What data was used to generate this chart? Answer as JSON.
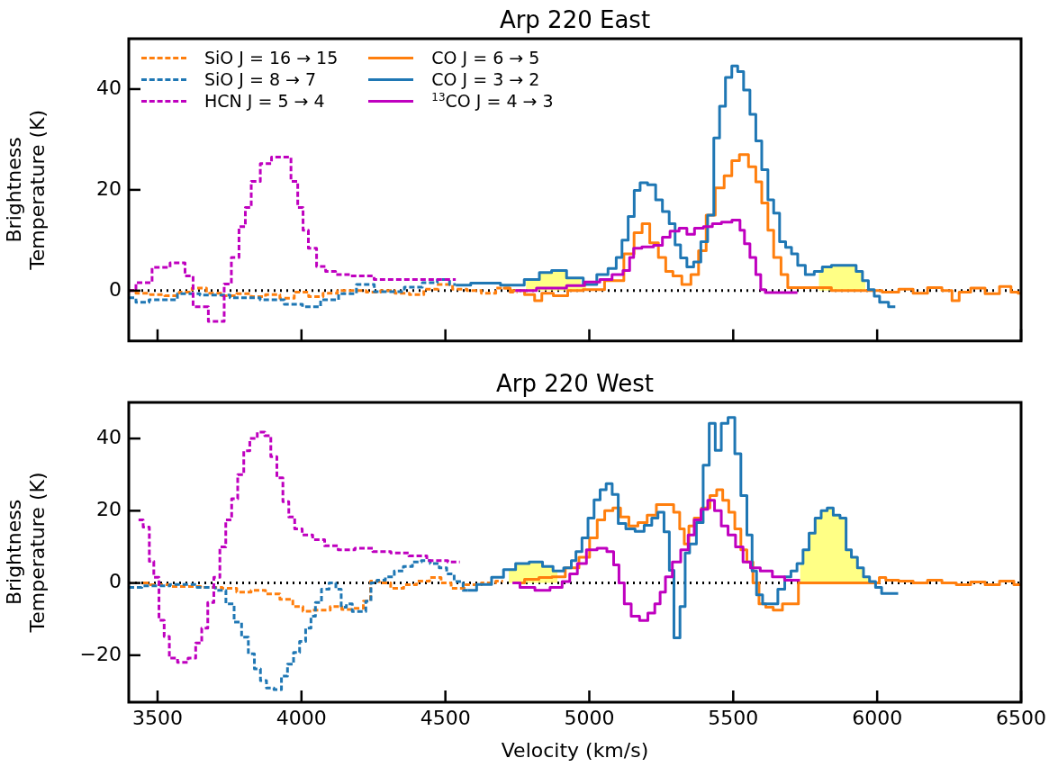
{
  "chart_data": [
    {
      "type": "step",
      "title": "Arp 220 East",
      "ylabel": "Brightness Temperature (K)",
      "xlim": [
        3400,
        6500
      ],
      "xticks": [
        3500,
        4000,
        4500,
        5000,
        5500,
        6000,
        6500
      ],
      "ylim": [
        -10,
        50
      ],
      "yticks": [
        0,
        20,
        40
      ],
      "tick_labels": "y",
      "grid": false,
      "legend": "top left",
      "ref_lines": [
        {
          "axis": "y",
          "value": 0,
          "line_style": "dotted",
          "color": "#000000"
        }
      ],
      "series": [
        {
          "type": "area",
          "color": "#ffff66",
          "x": [
            4780,
            4805,
            4848,
            4890,
            4952,
            4990
          ],
          "values": [
            2.0,
            2.2,
            3.6,
            4.0,
            2.5,
            1.2
          ]
        },
        {
          "type": "area",
          "color": "#ffff66",
          "x": [
            5797,
            5822,
            5860,
            5916,
            5938,
            5960
          ],
          "values": [
            3.8,
            4.7,
            5.0,
            5.0,
            3.8,
            2.0
          ]
        },
        {
          "name": "SiO J = 16 → 15",
          "line_style": "dashed",
          "color": "#ff7f0e",
          "x": [
            3400,
            3450,
            3500,
            3550,
            3600,
            3640,
            3700,
            3750,
            3800,
            3850,
            3900,
            3950,
            4000,
            4050,
            4100,
            4150,
            4200,
            4250,
            4300,
            4350,
            4400,
            4450,
            4500,
            4550,
            4600,
            4650,
            4700,
            4750
          ],
          "values": [
            0,
            -0.5,
            -0.8,
            -1,
            -0.3,
            0.5,
            -0.5,
            -1,
            -0.6,
            -1.2,
            -0.8,
            -1.5,
            -0.3,
            -1.2,
            -0.5,
            0,
            0,
            -0.3,
            0,
            -0.5,
            -0.8,
            0.3,
            1.2,
            0.3,
            0,
            -0.5,
            0.5,
            -0.3
          ]
        },
        {
          "name": "SiO J = 8 → 7",
          "line_style": "dashed",
          "color": "#1f77b4",
          "x": [
            3400,
            3450,
            3491,
            3543,
            3595,
            3700,
            3804,
            3909,
            3972,
            4035,
            4098,
            4160,
            4222,
            4284,
            4326,
            4389,
            4451,
            4493,
            4536
          ],
          "values": [
            -1.4,
            -2.3,
            -1.8,
            -1.8,
            -0.6,
            -0.9,
            -1.4,
            -1.8,
            -2.7,
            -3.2,
            -1.8,
            -0.6,
            1.2,
            -0.2,
            -0.2,
            0.7,
            1.6,
            2.2,
            1.2
          ]
        },
        {
          "name": "HCN J = 5 → 4",
          "line_style": "dashed",
          "color": "#bf00bf",
          "x": [
            3400,
            3450,
            3512,
            3575,
            3616,
            3631,
            3722,
            3741,
            3772,
            3794,
            3816,
            3835,
            3879,
            3913,
            3951,
            3976,
            3998,
            4013,
            4035,
            4070,
            4098,
            4139,
            4201,
            4304,
            4430,
            4536
          ],
          "values": [
            0,
            1.6,
            4.6,
            5.5,
            2.9,
            -3.2,
            -6.1,
            1.3,
            6.6,
            12.7,
            16.5,
            21.7,
            25.2,
            26.5,
            26.5,
            21.7,
            16.5,
            12.0,
            8.4,
            4.8,
            3.8,
            3.2,
            2.9,
            2.2,
            2.2,
            2.2
          ]
        },
        {
          "name": "CO J = 6 → 5",
          "color": "#ff7f0e",
          "x": [
            4700,
            4750,
            4800,
            4820,
            4850,
            4900,
            4950,
            5006,
            5100,
            5140,
            5171,
            5196,
            5224,
            5256,
            5275,
            5306,
            5337,
            5369,
            5390,
            5422,
            5453,
            5484,
            5506,
            5537,
            5569,
            5588,
            5610,
            5631,
            5650,
            5682,
            5697,
            5985,
            6050,
            6100,
            6150,
            6200,
            6250,
            6270,
            6300,
            6350,
            6400,
            6450,
            6480,
            6500
          ],
          "values": [
            0.5,
            0,
            -0.8,
            -2,
            -0.5,
            -1,
            0,
            0.2,
            2,
            7.3,
            11.5,
            13.3,
            9.5,
            6.6,
            3.8,
            2.9,
            1.2,
            3.2,
            7.9,
            15,
            20.4,
            22.8,
            25.8,
            27,
            24.6,
            21.6,
            17.4,
            12,
            6.6,
            3.2,
            0.6,
            0,
            -0.3,
            0.3,
            -0.5,
            0.6,
            0,
            -2,
            -0.3,
            0.5,
            -0.6,
            0.8,
            -0.3,
            -0.5
          ]
        },
        {
          "name": "CO J = 3 → 2",
          "color": "#1f77b4",
          "x": [
            4536,
            4640,
            4743,
            4805,
            4848,
            4890,
            4952,
            5006,
            5046,
            5084,
            5103,
            5124,
            5146,
            5166,
            5187,
            5218,
            5243,
            5265,
            5290,
            5306,
            5328,
            5350,
            5375,
            5400,
            5422,
            5443,
            5462,
            5484,
            5506,
            5525,
            5547,
            5569,
            5588,
            5610,
            5631,
            5650,
            5672,
            5692,
            5713,
            5735,
            5766,
            5797,
            5822,
            5860,
            5916,
            5938,
            5960,
            5979,
            6001,
            6016,
            6063
          ],
          "values": [
            1.1,
            1.5,
            1.1,
            2.2,
            3.6,
            4.0,
            2.5,
            1.2,
            3.2,
            4.4,
            6.6,
            10,
            14.7,
            19.9,
            21.4,
            21,
            18,
            15.7,
            13.3,
            9.1,
            6.5,
            4.7,
            5.7,
            9.7,
            15,
            30.3,
            36.6,
            42.3,
            44.6,
            43.5,
            39.8,
            35,
            29.7,
            24,
            18,
            15.4,
            9.7,
            8.6,
            7.3,
            5,
            3.2,
            3.8,
            4.7,
            5,
            5,
            3.8,
            2,
            0.2,
            -1.1,
            -2.3,
            -3.2
          ]
        },
        {
          "name": "$^{13}$CO J = 4 → 3",
          "color": "#bf00bf",
          "x": [
            4743,
            4890,
            4952,
            5015,
            5058,
            5100,
            5134,
            5146,
            5162,
            5203,
            5243,
            5265,
            5296,
            5328,
            5350,
            5381,
            5412,
            5443,
            5475,
            5516,
            5531,
            5547,
            5569,
            5588,
            5603,
            5620,
            5682,
            5723
          ],
          "values": [
            0,
            0.5,
            1.0,
            1.7,
            2.2,
            3.2,
            4,
            6.6,
            8.4,
            8.7,
            9,
            10.6,
            11.8,
            12.4,
            11.2,
            12.4,
            12.7,
            13.3,
            13.6,
            14,
            12,
            9.3,
            6.6,
            3.2,
            0.2,
            -0.4,
            -0.4,
            -0.4
          ]
        }
      ]
    },
    {
      "type": "step",
      "title": "Arp 220 West",
      "xlabel": "Velocity (km/s)",
      "ylabel": "Brightness Temperature (K)",
      "xlim": [
        3400,
        6500
      ],
      "xticks": [
        3500,
        4000,
        4500,
        5000,
        5500,
        6000,
        6500
      ],
      "ylim": [
        -33,
        50
      ],
      "yticks": [
        -20,
        0,
        20,
        40
      ],
      "grid": false,
      "ref_lines": [
        {
          "axis": "y",
          "value": 0,
          "line_style": "dotted",
          "color": "#000000"
        }
      ],
      "series": [
        {
          "type": "area",
          "color": "#ffff66",
          "x": [
            4720,
            4765,
            4817,
            4858,
            4890
          ],
          "values": [
            3.7,
            5.4,
            5.8,
            4.6,
            3.3
          ]
        },
        {
          "type": "area",
          "color": "#ffff66",
          "x": [
            5732,
            5753,
            5774,
            5795,
            5816,
            5837,
            5858,
            5884,
            5900,
            5921,
            5942,
            5963,
            5984
          ],
          "values": [
            5.4,
            9.2,
            13.8,
            18,
            20,
            20.8,
            18.8,
            18,
            9.2,
            7.1,
            4.2,
            1.7,
            0.4
          ]
        },
        {
          "line_style": "dashed",
          "color": "#ff7f0e",
          "x": [
            3450,
            3500,
            3600,
            3700,
            3750,
            3800,
            3850,
            3900,
            3950,
            3990,
            4020,
            4050,
            4080,
            4120,
            4160,
            4200,
            4230,
            4250,
            4290,
            4330,
            4380,
            4420,
            4470,
            4500,
            4540,
            4600,
            4650,
            4700
          ],
          "values": [
            0,
            -0.5,
            -1,
            -1.2,
            -1.5,
            -2.5,
            -2,
            -3,
            -4.5,
            -6.5,
            -7.8,
            -7.5,
            -7.5,
            -6.5,
            -7.3,
            -7,
            -5,
            0.5,
            0,
            -1.5,
            -0.5,
            0.5,
            1.5,
            0,
            -1.5,
            -0.5,
            0,
            0.5
          ]
        },
        {
          "line_style": "dashed",
          "color": "#1f77b4",
          "x": [
            3400,
            3491,
            3595,
            3680,
            3722,
            3753,
            3779,
            3805,
            3826,
            3847,
            3868,
            3889,
            3920,
            3941,
            3962,
            3983,
            4004,
            4025,
            4041,
            4056,
            4083,
            4109,
            4130,
            4146,
            4166,
            4187,
            4213,
            4234,
            4249,
            4276,
            4307,
            4338,
            4370,
            4401,
            4432,
            4463,
            4494,
            4515,
            4546,
            4577
          ],
          "values": [
            -1.2,
            -0.8,
            -0.4,
            -1.2,
            -2,
            -5.8,
            -10.8,
            -15,
            -19.6,
            -23.8,
            -27,
            -29.1,
            -29.5,
            -25.8,
            -22.5,
            -19.2,
            -16.2,
            -12.5,
            -9.2,
            -5.4,
            -1.7,
            0,
            -1.7,
            -6.7,
            -5.8,
            -7.9,
            -7.9,
            -5,
            0,
            0.8,
            1.7,
            3.3,
            4.6,
            5.8,
            6.2,
            5.4,
            4.2,
            2.5,
            0.4,
            -2
          ]
        },
        {
          "line_style": "dashed",
          "color": "#bf00bf",
          "x": [
            3434,
            3466,
            3477,
            3497,
            3513,
            3533,
            3549,
            3590,
            3622,
            3643,
            3664,
            3685,
            3706,
            3727,
            3747,
            3768,
            3789,
            3810,
            3831,
            3862,
            3883,
            3904,
            3925,
            3946,
            3966,
            3987,
            4018,
            4060,
            4101,
            4154,
            4217,
            4279,
            4342,
            4404,
            4467,
            4550
          ],
          "values": [
            17.5,
            15.5,
            6,
            1.6,
            -10.3,
            -14.8,
            -20.8,
            -22,
            -20.8,
            -16.6,
            -12.5,
            -5.4,
            1.6,
            10,
            17.5,
            23.3,
            30,
            36.6,
            40,
            41.8,
            40.8,
            35,
            29.1,
            22.5,
            18.3,
            15,
            13.3,
            12,
            10.3,
            9.2,
            9.6,
            8.7,
            8.3,
            7.5,
            6.2,
            5.8
          ]
        },
        {
          "color": "#ff7f0e",
          "x": [
            4750,
            4800,
            4850,
            4890,
            4943,
            4985,
            5017,
            5038,
            5069,
            5095,
            5122,
            5153,
            5185,
            5217,
            5249,
            5280,
            5306,
            5322,
            5338,
            5354,
            5375,
            5406,
            5432,
            5453,
            5474,
            5495,
            5516,
            5537,
            5558,
            5579,
            5600,
            5626,
            5652,
            5690,
            5721,
            5732,
            6005,
            6010,
            6050,
            6100,
            6150,
            6200,
            6250,
            6300,
            6350,
            6400,
            6450,
            6500
          ],
          "values": [
            0,
            1,
            1.5,
            1.7,
            4.2,
            7.1,
            12.5,
            17.5,
            20,
            20.8,
            18.3,
            15.8,
            16.7,
            18.8,
            21.7,
            21.7,
            19.6,
            15,
            10.8,
            15.8,
            18,
            20.8,
            24.2,
            25.8,
            22.9,
            19.6,
            15,
            9.2,
            5.8,
            0,
            -5.8,
            -6.7,
            -7.5,
            -5.8,
            -5.8,
            0,
            0,
            1.5,
            0.8,
            0.5,
            0,
            0.8,
            0,
            -0.5,
            0.3,
            -0.5,
            0.5,
            -0.5
          ]
        },
        {
          "color": "#1f77b4",
          "x": [
            4577,
            4640,
            4681,
            4723,
            4765,
            4817,
            4858,
            4890,
            4932,
            4943,
            4964,
            4985,
            5006,
            5027,
            5048,
            5069,
            5090,
            5111,
            5143,
            5175,
            5206,
            5228,
            5249,
            5270,
            5286,
            5302,
            5328,
            5338,
            5359,
            5385,
            5406,
            5427,
            5448,
            5469,
            5495,
            5516,
            5537,
            5558,
            5573,
            5589,
            5615,
            5642,
            5668,
            5690,
            5711,
            5732,
            5753,
            5774,
            5795,
            5816,
            5837,
            5858,
            5884,
            5900,
            5921,
            5942,
            5963,
            5984,
            6005,
            6026,
            6073
          ],
          "values": [
            -2,
            -0.4,
            1.6,
            3.7,
            5.4,
            5.8,
            4.6,
            3.3,
            4.2,
            6.2,
            8.7,
            12.5,
            18,
            23,
            25.8,
            27.5,
            24.5,
            16.5,
            15,
            14.3,
            16,
            18,
            19.6,
            14.2,
            3.5,
            -15.2,
            -6.5,
            8.3,
            10.8,
            16.7,
            32.6,
            44.2,
            36.7,
            44.2,
            45.8,
            35.8,
            24.2,
            13.3,
            3.3,
            -3.3,
            -5.8,
            -5.8,
            -1.7,
            1.7,
            3.3,
            5.4,
            9.2,
            13.8,
            18,
            20,
            20.8,
            18.8,
            18,
            9.2,
            7.1,
            4.2,
            1.7,
            0.4,
            -1.2,
            -2.9,
            -2.9
          ]
        },
        {
          "color": "#bf00bf",
          "x": [
            4733,
            4785,
            4837,
            4890,
            4921,
            4943,
            4974,
            5006,
            5048,
            5074,
            5095,
            5111,
            5132,
            5159,
            5190,
            5217,
            5238,
            5254,
            5275,
            5302,
            5333,
            5354,
            5375,
            5401,
            5422,
            5448,
            5469,
            5495,
            5521,
            5547,
            5573,
            5615,
            5657,
            5700,
            5732
          ],
          "values": [
            0,
            -1.2,
            -2,
            -1.2,
            0.4,
            2.5,
            5.4,
            9.2,
            9.6,
            8.7,
            5,
            0,
            -5.8,
            -9.2,
            -10.4,
            -8.3,
            -5.8,
            -2.5,
            1.7,
            5.8,
            9.2,
            13.3,
            17.5,
            20.4,
            22.9,
            20,
            15.8,
            13.3,
            10,
            5.8,
            4.2,
            3.3,
            1.7,
            0.8,
            0.8
          ]
        }
      ]
    }
  ]
}
